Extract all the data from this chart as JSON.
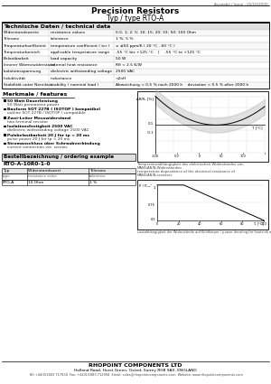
{
  "title_top_right": "Ausgabe / Issue : 01/10/2000",
  "title_main": "Precision Resistors",
  "title_sub": "Typ / type RTO-A",
  "tech_header": "Technische Daten / technical data",
  "tech_rows": [
    [
      "Widerstandswerte",
      "resistance values",
      "0.5; 1; 2; 5; 10; 15; 20; 33; 50; 100 Ohm"
    ],
    [
      "Toleranz",
      "tolerance",
      "1 %; 5 %"
    ],
    [
      "Temperaturkoeffizient",
      "temperature coefficient ( tcr )",
      "± ≤50 ppm/K ( 20 °C - 60 °C )"
    ],
    [
      "Temperaturbereich",
      "applicable temperature range",
      "-55 °C bis +125 °C    |    -55 °C to +125 °C"
    ],
    [
      "Belastbarkeit",
      "load capacity",
      "50 W"
    ],
    [
      "Innerer Wärmewiderstand",
      "internal heat resistance",
      "Rθ < 2.5 K/W"
    ],
    [
      "Isolationsspannung",
      "dielectric withstanding voltage",
      "2500 VAC"
    ],
    [
      "Induktivität",
      "inductance",
      "<2nH"
    ],
    [
      "Stabilität unter Nennlast",
      "stability ( nominal load )",
      "Abweichung < 0.5 % nach 2000 h    deviation < 0.5 % after 2000 h"
    ]
  ],
  "features_header": "Merkmale / features",
  "features": [
    [
      "50 Watt Dauerleistung",
      "50 Watt permanent power"
    ],
    [
      "Bauform SOT 227B ( ISOTOP ) kompatibel",
      "outline SOT 227B / ISOTOP ) compatible"
    ],
    [
      "Zwei-Leiter Messwiderstand",
      "two terminal resistor"
    ],
    [
      "Isolationsfestigkeit 2500 VAC",
      "dielectric withstanding voltage 2500 VAC"
    ],
    [
      "Pulsbelastbarkeit 20 J für tp < 20 ms",
      "pulse power 20 J for tp < 20 ms"
    ],
    [
      "Stromanschluss über Schraubverbindung",
      "current connection via  screws"
    ]
  ],
  "graph1_caption": [
    "Temperaturabhängigkeit des elektrischen Widerstandes von",
    "MANGANIN-Widerständen",
    "temperature dependence of the electrical resistance of",
    "MANGANIN-resistors"
  ],
  "ordering_header": "Bestellbezeichnung / ordering example",
  "ordering_model": "RTO-A-10R0-1-0",
  "ordering_cols_de": [
    "Typ",
    "Widerstandswert",
    "Toleranz"
  ],
  "ordering_cols_en": [
    "type",
    "resistance value",
    "tolerance"
  ],
  "ordering_vals": [
    "RTO-A",
    "10 Ohm",
    "1 %"
  ],
  "graph2_ylabel": "P / Pₘₐˣ",
  "graph2_caption": "Lastabhängigkeit der Widerstände auf Kühlkörper / power derating for heatsink mounted resistors",
  "footer": "RHOPOINT COMPONENTS LTD",
  "footer2": "Holland Road, Hurst Green, Oxted, Surrey RH8 9AX, ENGLAND",
  "footer3": "Tel: +44(0)1883 717834  Fax: +44(0)1883 712994  Email: sales@rhopointcomponents.com  Website: www.rhopointcomponents.com",
  "bg_color": "#ffffff"
}
